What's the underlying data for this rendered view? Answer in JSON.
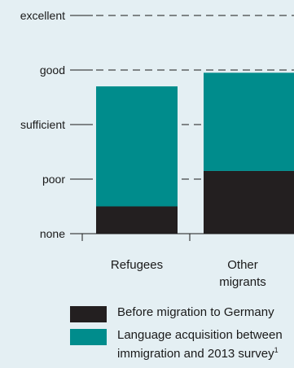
{
  "chart_data": {
    "type": "bar",
    "stacked": true,
    "categories": [
      "Refugees",
      "Other migrants"
    ],
    "category_lines": [
      [
        "Refugees"
      ],
      [
        "Other",
        "migrants"
      ]
    ],
    "y_ticks": [
      "none",
      "poor",
      "sufficient",
      "good",
      "excellent"
    ],
    "ylim": [
      0,
      4
    ],
    "series": [
      {
        "name": "Before migration to Germany",
        "values": [
          0.5,
          1.15
        ],
        "color": "#231f20"
      },
      {
        "name": "Language acquisition between immigration and 2013 survey",
        "name_lines": [
          "Language acquisition between",
          "immigration and 2013 survey"
        ],
        "values": [
          2.2,
          1.8
        ],
        "color": "#008c8c",
        "footnote_mark": "1"
      }
    ],
    "legend_position": "bottom",
    "grid": "dashed"
  }
}
